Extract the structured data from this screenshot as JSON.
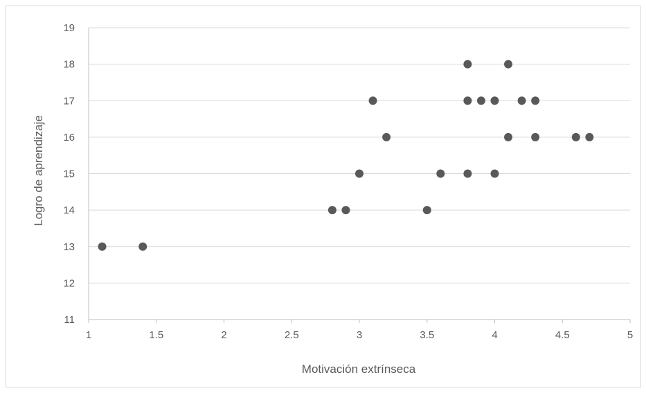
{
  "chart_data": {
    "type": "scatter",
    "title": "",
    "xlabel": "Motivación extrínseca",
    "ylabel": "Logro de aprendizaje",
    "xlim": [
      1,
      5
    ],
    "ylim": [
      11,
      19
    ],
    "x_ticks": [
      "1",
      "1.5",
      "2",
      "2.5",
      "3",
      "3.5",
      "4",
      "4.5",
      "5"
    ],
    "y_ticks": [
      "11",
      "12",
      "13",
      "14",
      "15",
      "16",
      "17",
      "18",
      "19"
    ],
    "grid": "horizontal",
    "legend": "none",
    "marker_color": "#595959",
    "gridline_color": "#d9d9d9",
    "points": [
      {
        "x": 1.1,
        "y": 13
      },
      {
        "x": 1.4,
        "y": 13
      },
      {
        "x": 2.8,
        "y": 14
      },
      {
        "x": 2.9,
        "y": 14
      },
      {
        "x": 3.5,
        "y": 14
      },
      {
        "x": 3.0,
        "y": 15
      },
      {
        "x": 3.6,
        "y": 15
      },
      {
        "x": 3.8,
        "y": 15
      },
      {
        "x": 4.0,
        "y": 15
      },
      {
        "x": 3.2,
        "y": 16
      },
      {
        "x": 4.1,
        "y": 16
      },
      {
        "x": 4.3,
        "y": 16
      },
      {
        "x": 4.6,
        "y": 16
      },
      {
        "x": 4.7,
        "y": 16
      },
      {
        "x": 3.1,
        "y": 17
      },
      {
        "x": 3.8,
        "y": 17
      },
      {
        "x": 3.9,
        "y": 17
      },
      {
        "x": 4.0,
        "y": 17
      },
      {
        "x": 4.2,
        "y": 17
      },
      {
        "x": 4.3,
        "y": 17
      },
      {
        "x": 3.8,
        "y": 18
      },
      {
        "x": 4.1,
        "y": 18
      }
    ]
  }
}
